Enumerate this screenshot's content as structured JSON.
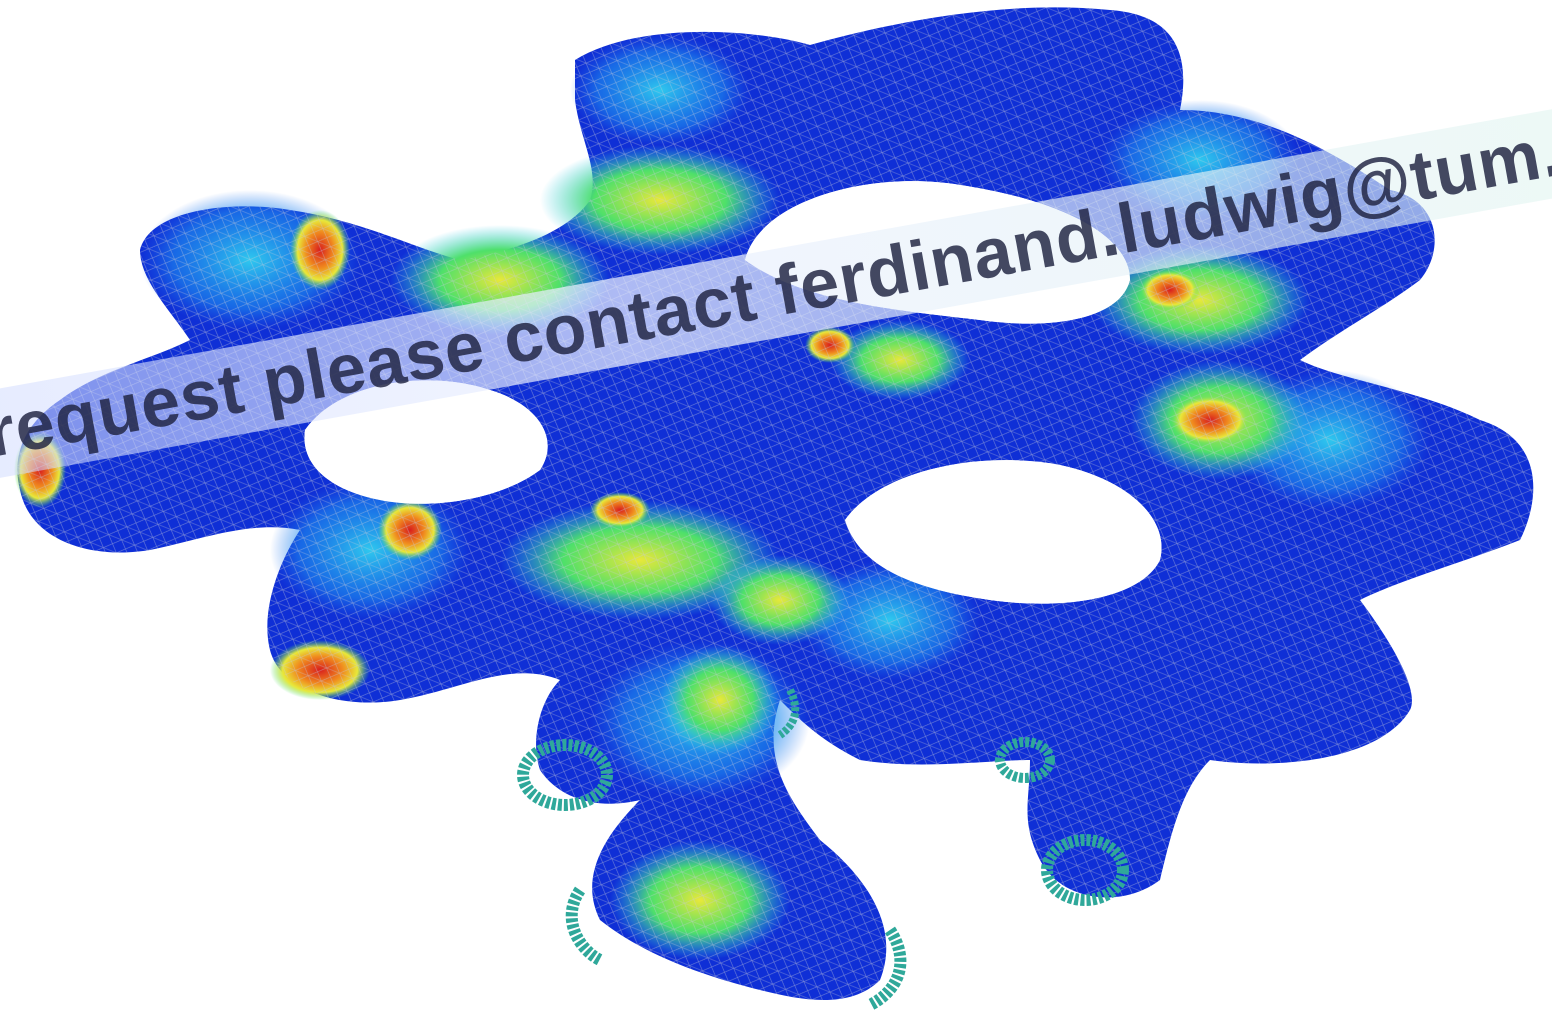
{
  "image": {
    "subject": "fe-mesh-stress-contour",
    "colormap": [
      "#0a1fd0",
      "#1e6ef0",
      "#2fc8ee",
      "#4ee06a",
      "#e8e83a",
      "#f08a1e",
      "#d81e1e"
    ],
    "mesh_color": "#b9bccb",
    "support_color": "#2fa89a"
  },
  "watermark": {
    "text": "request please contact ferdinand.ludwig@tum.de"
  }
}
